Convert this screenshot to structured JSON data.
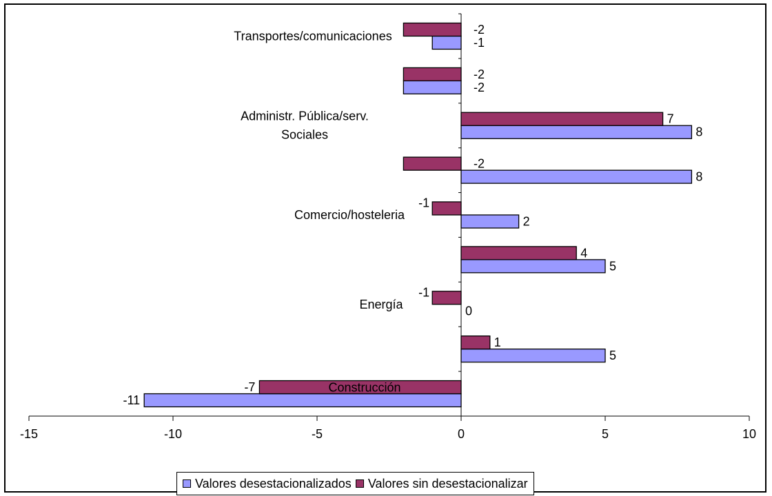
{
  "chart_data": {
    "type": "bar",
    "orientation": "horizontal",
    "title": "",
    "xlabel": "",
    "ylabel": "",
    "xlim": [
      -15,
      10
    ],
    "x_ticks": [
      -15,
      -10,
      -5,
      0,
      5,
      10
    ],
    "x_tick_labels": [
      "-15",
      "-10",
      "-5",
      "0",
      "5",
      "10"
    ],
    "grid": false,
    "legend_position": "bottom",
    "categories": [
      "Construcción",
      "",
      "Energía",
      "",
      "Comercio/hosteleria",
      "",
      "Administr. Pública/serv. Sociales",
      "",
      "Transportes/comunicaciones"
    ],
    "category_label_lines": [
      [
        "Construcción"
      ],
      [],
      [
        "Energía"
      ],
      [],
      [
        "Comercio/hosteleria"
      ],
      [],
      [
        "Administr. Pública/serv.",
        "Sociales"
      ],
      [],
      [
        "Transportes/comunicaciones"
      ]
    ],
    "series": [
      {
        "name": "Valores desestacionalizados",
        "color": "#9999FF",
        "values": [
          -11,
          5,
          0,
          5,
          2,
          8,
          8,
          -2,
          -1
        ]
      },
      {
        "name": "Valores sin desestacionalizar",
        "color": "#993366",
        "values": [
          -7,
          1,
          -1,
          4,
          -1,
          -2,
          7,
          -2,
          -2
        ]
      }
    ]
  }
}
